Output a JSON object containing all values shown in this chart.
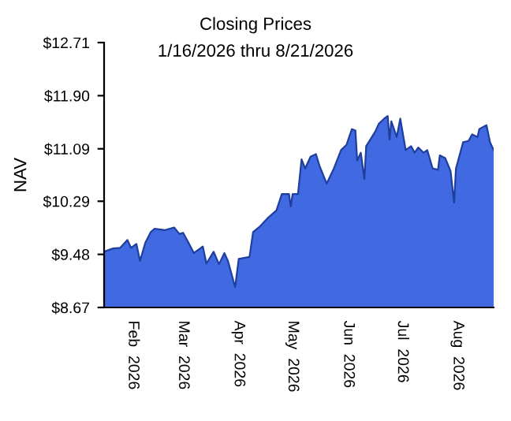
{
  "chart_data": {
    "type": "area",
    "title": "Closing Prices",
    "subtitle": "1/16/2026 thru 8/21/2026",
    "ylabel": "NAV",
    "x": [
      "2026-01-16",
      "2026-01-21",
      "2026-01-25",
      "2026-01-29",
      "2026-01-31",
      "2026-02-03",
      "2026-02-05",
      "2026-02-08",
      "2026-02-11",
      "2026-02-13",
      "2026-02-19",
      "2026-02-24",
      "2026-02-27",
      "2026-03-01",
      "2026-03-04",
      "2026-03-07",
      "2026-03-12",
      "2026-03-14",
      "2026-03-18",
      "2026-03-21",
      "2026-03-24",
      "2026-03-26",
      "2026-03-30",
      "2026-04-01",
      "2026-04-07",
      "2026-04-09",
      "2026-04-13",
      "2026-04-17",
      "2026-04-22",
      "2026-04-25",
      "2026-04-29",
      "2026-04-30",
      "2026-05-01",
      "2026-05-04",
      "2026-05-06",
      "2026-05-08",
      "2026-05-11",
      "2026-05-14",
      "2026-05-16",
      "2026-05-20",
      "2026-05-24",
      "2026-05-28",
      "2026-05-31",
      "2026-06-03",
      "2026-06-05",
      "2026-06-06",
      "2026-06-08",
      "2026-06-10",
      "2026-06-11",
      "2026-06-16",
      "2026-06-18",
      "2026-06-21",
      "2026-06-23",
      "2026-06-24",
      "2026-06-25",
      "2026-06-28",
      "2026-06-30",
      "2026-07-03",
      "2026-07-06",
      "2026-07-08",
      "2026-07-10",
      "2026-07-13",
      "2026-07-15",
      "2026-07-18",
      "2026-07-21",
      "2026-07-22",
      "2026-07-25",
      "2026-07-28",
      "2026-07-30",
      "2026-07-31",
      "2026-08-04",
      "2026-08-07",
      "2026-08-09",
      "2026-08-12",
      "2026-08-13",
      "2026-08-17",
      "2026-08-19",
      "2026-08-21"
    ],
    "series": [
      {
        "color": "#4169e1",
        "values": [
          9.52,
          9.57,
          9.58,
          9.7,
          9.58,
          9.64,
          9.38,
          9.66,
          9.82,
          9.87,
          9.85,
          9.89,
          9.79,
          9.81,
          9.66,
          9.5,
          9.6,
          9.34,
          9.52,
          9.33,
          9.5,
          9.38,
          8.98,
          9.41,
          9.44,
          9.82,
          9.91,
          10.03,
          10.15,
          10.4,
          10.4,
          10.21,
          10.4,
          10.4,
          10.93,
          10.79,
          10.97,
          11.01,
          10.83,
          10.56,
          10.79,
          11.07,
          11.15,
          11.39,
          11.37,
          10.91,
          11.03,
          10.63,
          11.13,
          11.35,
          11.47,
          11.55,
          11.59,
          11.23,
          11.51,
          11.27,
          11.55,
          11.07,
          11.13,
          11.03,
          11.11,
          11.03,
          11.07,
          10.79,
          10.77,
          10.99,
          10.95,
          10.75,
          10.27,
          10.79,
          11.19,
          11.21,
          11.31,
          11.27,
          11.39,
          11.45,
          11.19,
          11.07
        ]
      }
    ],
    "xlim": [
      "2026-01-16",
      "2026-08-21"
    ],
    "xticks": [
      {
        "value": "2026-02-01",
        "label": "Feb  2026"
      },
      {
        "value": "2026-03-01",
        "label": "Mar  2026"
      },
      {
        "value": "2026-04-01",
        "label": "Apr  2026"
      },
      {
        "value": "2026-05-01",
        "label": "May  2026"
      },
      {
        "value": "2026-06-01",
        "label": "Jun  2026"
      },
      {
        "value": "2026-07-01",
        "label": "Jul  2026"
      },
      {
        "value": "2026-08-01",
        "label": "Aug  2026"
      }
    ],
    "ylim": [
      8.67,
      12.71
    ],
    "yticks": [
      {
        "value": 8.67,
        "label": "$8.67"
      },
      {
        "value": 9.48,
        "label": "$9.48"
      },
      {
        "value": 10.29,
        "label": "$10.29"
      },
      {
        "value": 11.09,
        "label": "$11.09"
      },
      {
        "value": 11.9,
        "label": "$11.90"
      },
      {
        "value": 12.71,
        "label": "$12.71"
      }
    ],
    "grid": false,
    "legend": false
  }
}
